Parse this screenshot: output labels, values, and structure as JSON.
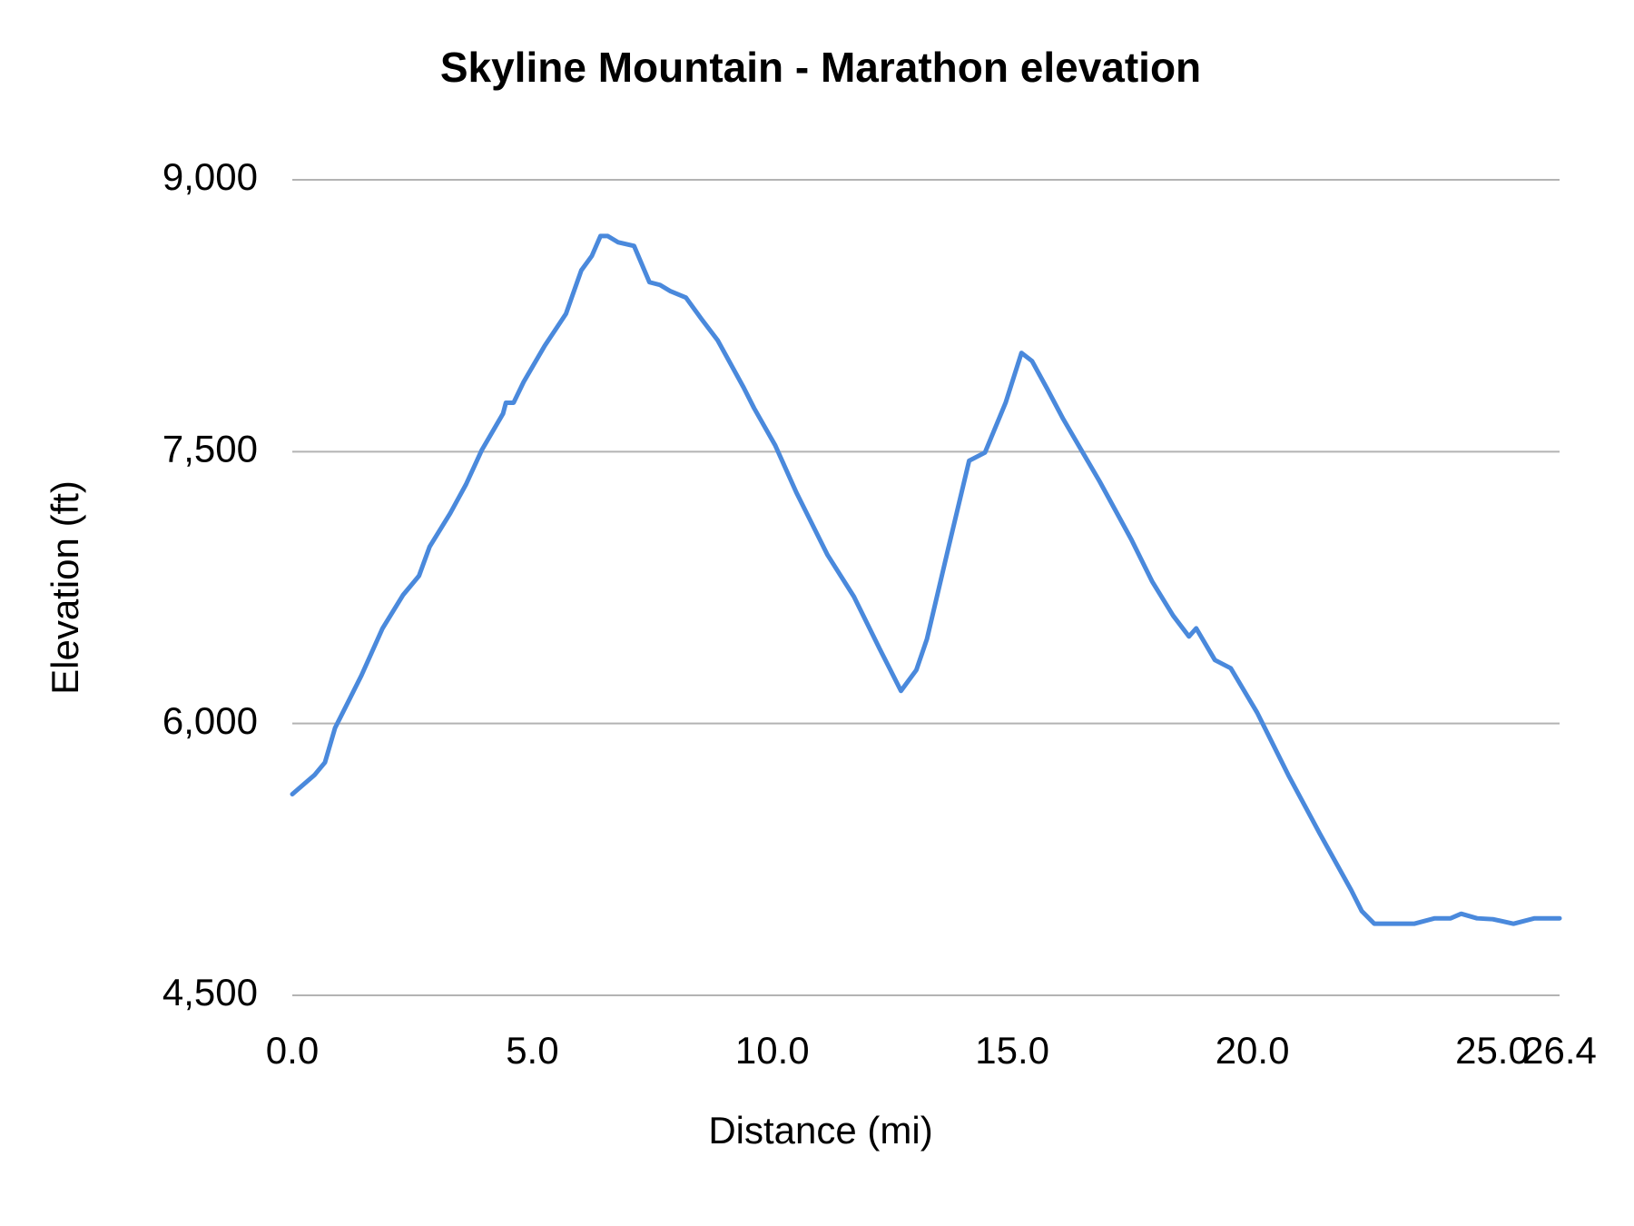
{
  "chart_data": {
    "type": "line",
    "title": "Skyline Mountain - Marathon elevation",
    "x_label": "Distance (mi)",
    "y_label": "Elevation (ft)",
    "xlim": [
      0,
      26.4
    ],
    "ylim": [
      4500,
      9000
    ],
    "xticks": [
      {
        "value": 0,
        "label": "0.0"
      },
      {
        "value": 5,
        "label": "5.0"
      },
      {
        "value": 10,
        "label": "10.0"
      },
      {
        "value": 15,
        "label": "15.0"
      },
      {
        "value": 20,
        "label": "20.0"
      },
      {
        "value": 25,
        "label": "25.0"
      },
      26.4
    ],
    "yticks": [
      {
        "value": 4500,
        "label": "4,500"
      },
      {
        "value": 6000,
        "label": "6,000"
      },
      {
        "value": 7500,
        "label": "7,500"
      },
      {
        "value": 9000,
        "label": "9,000"
      }
    ],
    "grid": true,
    "x": [
      0,
      0.46,
      0.68,
      0.89,
      1.44,
      1.88,
      2.31,
      2.64,
      2.86,
      3.29,
      3.62,
      3.95,
      4.39,
      4.45,
      4.61,
      4.82,
      5.26,
      5.7,
      6.02,
      6.24,
      6.42,
      6.57,
      6.79,
      7.12,
      7.44,
      7.66,
      7.88,
      8.2,
      8.53,
      8.86,
      9.4,
      9.62,
      10.06,
      10.5,
      11.15,
      11.7,
      12.24,
      12.46,
      12.68,
      13.0,
      13.22,
      13.66,
      14.1,
      14.43,
      14.86,
      15.19,
      15.41,
      15.73,
      16.06,
      16.82,
      17.48,
      17.91,
      18.35,
      18.68,
      18.83,
      19.22,
      19.55,
      20.1,
      20.75,
      21.4,
      22.06,
      22.28,
      22.54,
      23.37,
      23.8,
      24.13,
      24.35,
      24.68,
      25.01,
      25.44,
      25.88,
      26.4
    ],
    "series": [
      {
        "name": "Elevation",
        "color": "#4a89dc",
        "values": [
          5610,
          5715,
          5785,
          5975,
          6265,
          6525,
          6710,
          6815,
          6975,
          7160,
          7320,
          7510,
          7710,
          7770,
          7770,
          7885,
          8085,
          8260,
          8500,
          8580,
          8690,
          8690,
          8655,
          8635,
          8435,
          8420,
          8385,
          8350,
          8230,
          8115,
          7855,
          7740,
          7535,
          7275,
          6930,
          6700,
          6410,
          6295,
          6180,
          6295,
          6465,
          6960,
          7450,
          7495,
          7770,
          8045,
          8000,
          7845,
          7680,
          7335,
          7015,
          6785,
          6595,
          6480,
          6525,
          6350,
          6305,
          6060,
          5715,
          5395,
          5080,
          4965,
          4895,
          4895,
          4925,
          4925,
          4950,
          4925,
          4920,
          4895,
          4925,
          4925
        ]
      }
    ]
  }
}
